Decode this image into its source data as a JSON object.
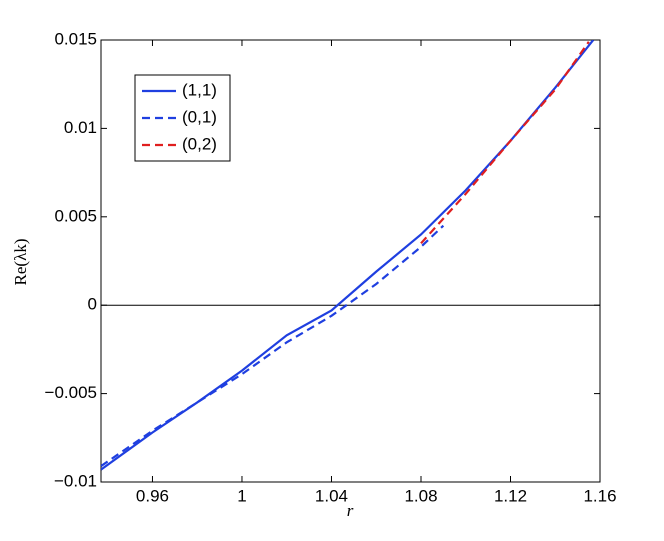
{
  "chart_data": {
    "type": "line",
    "x_label": "r",
    "y_label": "Re(λk)",
    "xlim": [
      0.937,
      1.16
    ],
    "xticks": [
      0.96,
      1,
      1.04,
      1.08,
      1.12,
      1.16
    ],
    "ylim": [
      -0.01,
      0.015
    ],
    "yticks": [
      {
        "value": -0.01,
        "label": "−0.01"
      },
      {
        "value": -0.005,
        "label": "−0.005"
      },
      0,
      0.005,
      0.01,
      0.015
    ],
    "legend": "upper left",
    "series": [
      {
        "name": "(1,1)",
        "color": "#1f3fe0",
        "dash": "solid",
        "x": [
          0.937,
          0.96,
          0.98,
          1.0,
          1.02,
          1.04,
          1.06,
          1.08,
          1.1,
          1.12,
          1.14,
          1.157
        ],
        "values": [
          -0.0093,
          -0.0072,
          -0.0055,
          -0.0037,
          -0.0017,
          -0.0003,
          0.0019,
          0.004,
          0.0065,
          0.0093,
          0.0123,
          0.015
        ]
      },
      {
        "name": "(0,1)",
        "color": "#1f3fe0",
        "dash": "dashed",
        "x": [
          0.937,
          0.96,
          0.98,
          1.0,
          1.02,
          1.04,
          1.06,
          1.08,
          1.09
        ],
        "values": [
          -0.0091,
          -0.0071,
          -0.0055,
          -0.0039,
          -0.0021,
          -0.0006,
          0.0012,
          0.0033,
          0.0045
        ]
      },
      {
        "name": "(0,2)",
        "color": "#e01f1f",
        "dash": "dashed",
        "x": [
          1.08,
          1.1,
          1.12,
          1.14,
          1.155
        ],
        "values": [
          0.0035,
          0.0063,
          0.0093,
          0.0122,
          0.0149
        ]
      }
    ]
  }
}
